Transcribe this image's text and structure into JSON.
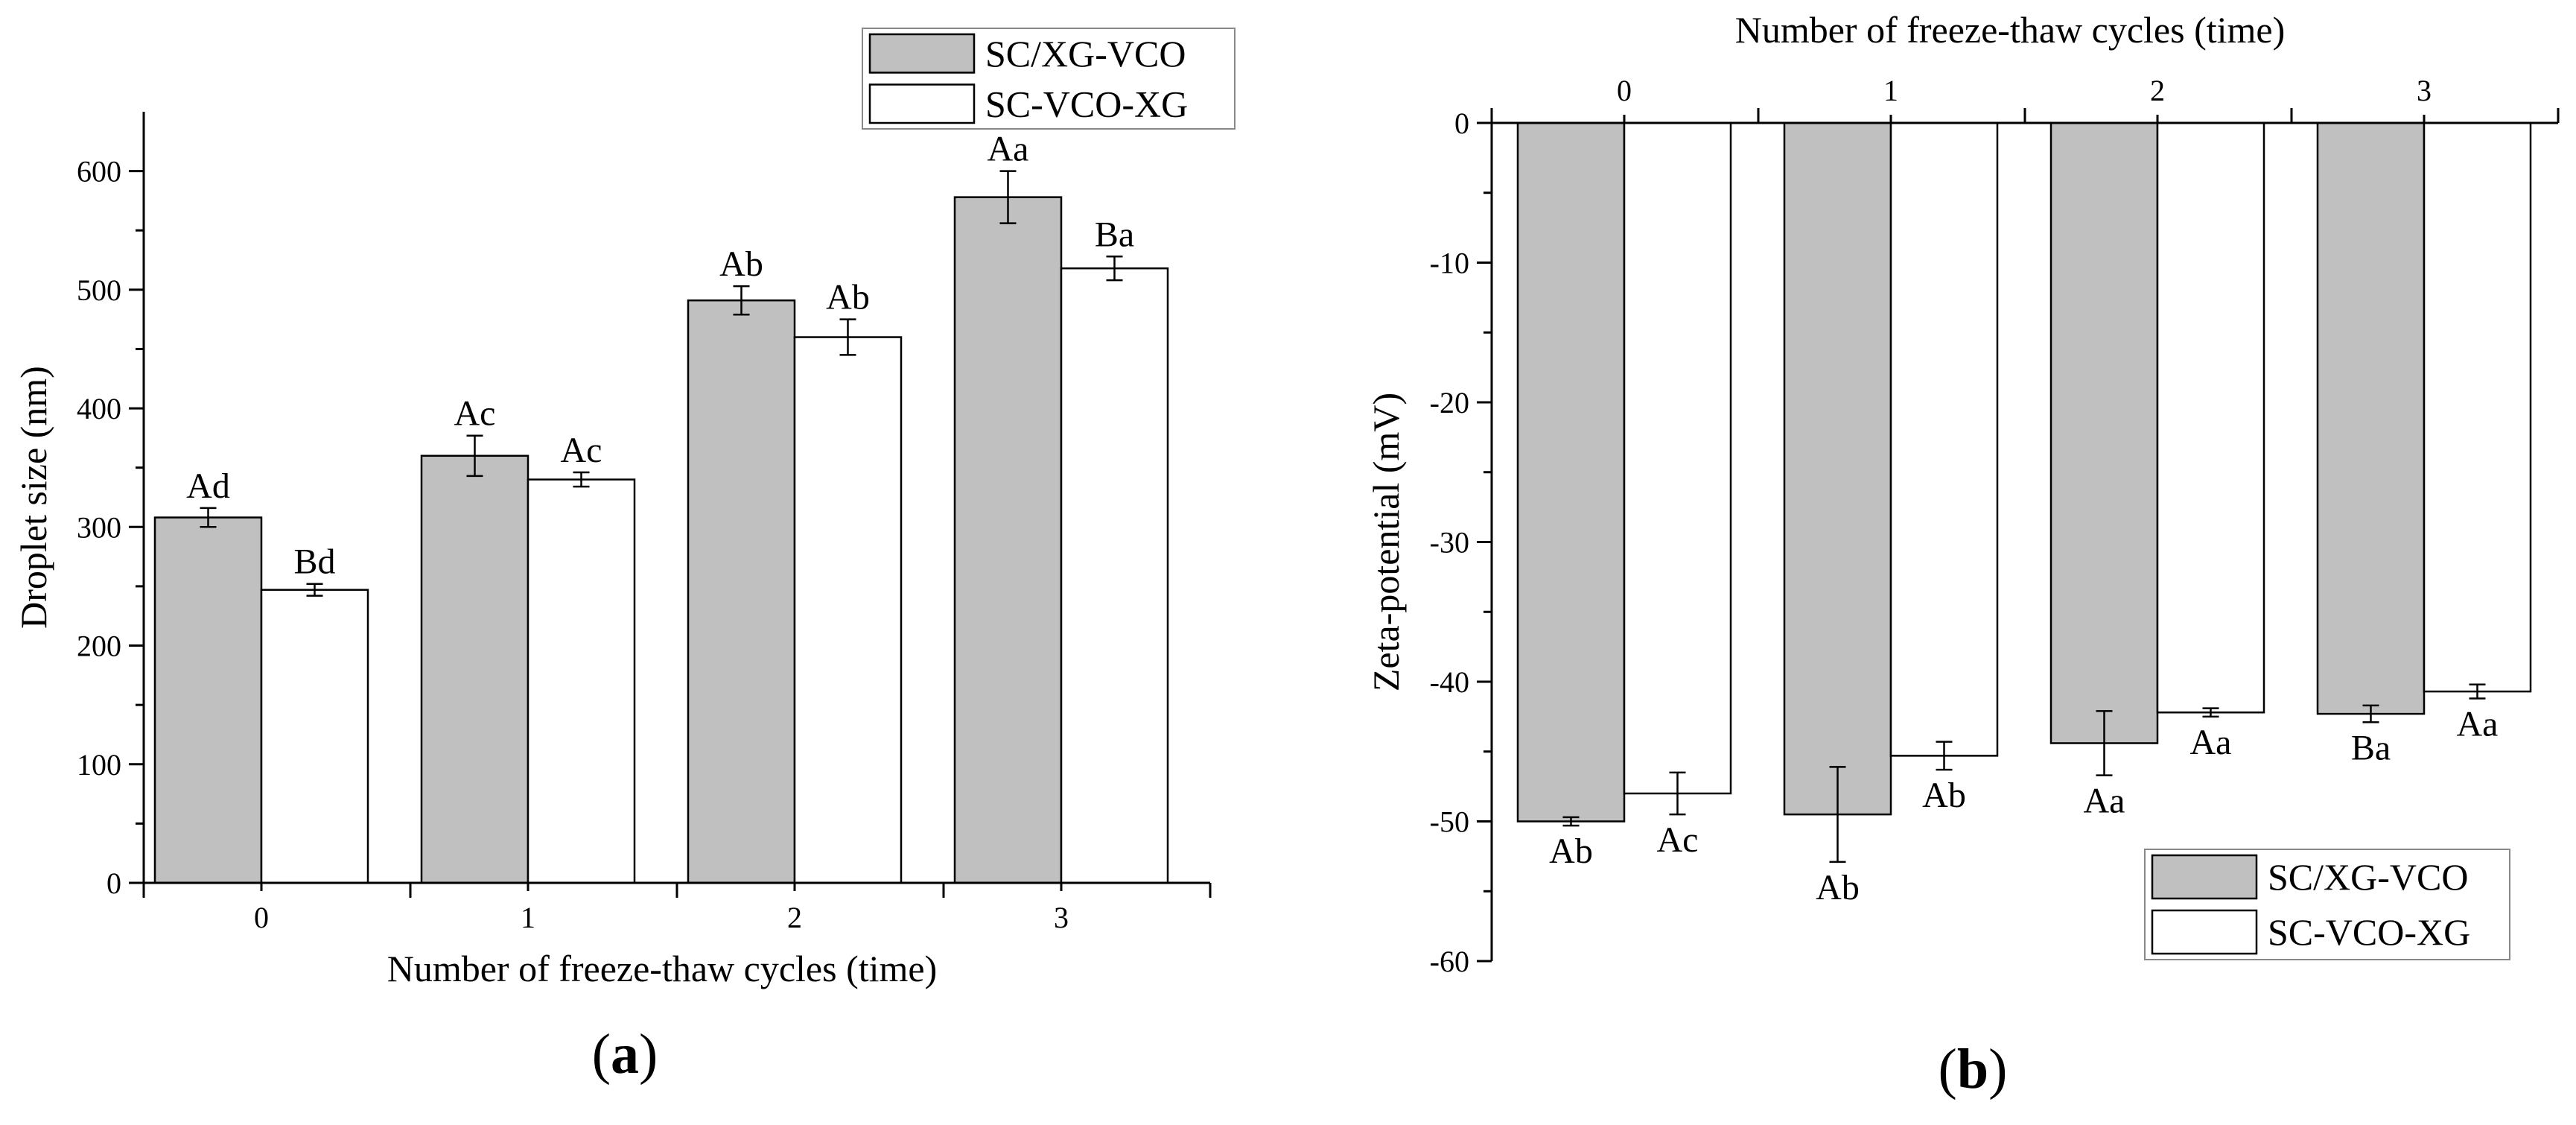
{
  "chart_data": [
    {
      "type": "bar",
      "panel_label": "a",
      "categories": [
        "0",
        "1",
        "2",
        "3"
      ],
      "xlabel": "Number of freeze-thaw cycles (time)",
      "ylabel": "Droplet size (nm)",
      "ylim": [
        0,
        650
      ],
      "yticks": [
        0,
        100,
        200,
        300,
        400,
        500,
        600
      ],
      "grid": false,
      "legend_position": "top-right",
      "series": [
        {
          "name": "SC/XG-VCO",
          "color": "#c0c0c0",
          "values": [
            308,
            360,
            491,
            578
          ],
          "errors": [
            8,
            17,
            12,
            22
          ],
          "labels": [
            "Ad",
            "Ac",
            "Ab",
            "Aa"
          ]
        },
        {
          "name": "SC-VCO-XG",
          "color": "#ffffff",
          "values": [
            247,
            340,
            460,
            518
          ],
          "errors": [
            5,
            6,
            15,
            10
          ],
          "labels": [
            "Bd",
            "Ac",
            "Ab",
            "Ba"
          ]
        }
      ]
    },
    {
      "type": "bar",
      "panel_label": "b",
      "categories": [
        "0",
        "1",
        "2",
        "3"
      ],
      "xlabel": "Number of freeze-thaw cycles (time)",
      "xaxis_position": "top",
      "ylabel": "Zeta-potential (mV)",
      "ylim": [
        -60,
        0
      ],
      "yticks": [
        0,
        -10,
        -20,
        -30,
        -40,
        -50,
        -60
      ],
      "grid": false,
      "legend_position": "bottom-right",
      "series": [
        {
          "name": "SC/XG-VCO",
          "color": "#c0c0c0",
          "values": [
            -50.0,
            -49.5,
            -44.4,
            -42.3
          ],
          "errors": [
            0.3,
            3.4,
            2.3,
            0.6
          ],
          "labels": [
            "Ab",
            "Ab",
            "Aa",
            "Ba"
          ]
        },
        {
          "name": "SC-VCO-XG",
          "color": "#ffffff",
          "values": [
            -48.0,
            -45.3,
            -42.2,
            -40.7
          ],
          "errors": [
            1.5,
            1.0,
            0.3,
            0.5
          ],
          "labels": [
            "Ac",
            "Ab",
            "Aa",
            "Aa"
          ]
        }
      ]
    }
  ]
}
